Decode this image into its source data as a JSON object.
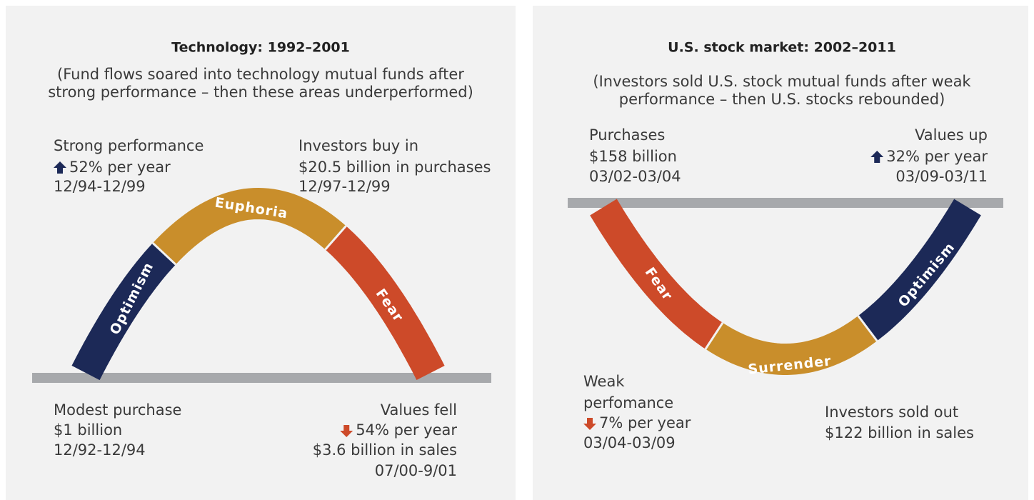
{
  "panels": [
    {
      "title": "Technology:  1992–2001",
      "subtitle": [
        "(Fund flows soared into technology mutual funds after",
        "strong performance – then these areas underperformed)"
      ],
      "segments": [
        "Optimism",
        "Euphoria",
        "Fear"
      ],
      "notes": [
        {
          "lines": [
            "Strong performance",
            "52% per year",
            "12/94-12/99"
          ]
        },
        {
          "lines": [
            "Investors buy in",
            "$20.5 billion in purchases",
            "12/97-12/99"
          ]
        },
        {
          "lines": [
            "Modest purchase",
            "$1 billion",
            "12/92-12/94"
          ]
        },
        {
          "lines": [
            "Values fell",
            "54% per year",
            "$3.6 billion in sales",
            "07/00-9/01"
          ]
        }
      ]
    },
    {
      "title": "U.S. stock market:  2002–2011",
      "subtitle": [
        "(Investors sold U.S. stock mutual funds after weak",
        "performance – then U.S. stocks rebounded)"
      ],
      "segments": [
        "Fear",
        "Surrender",
        "Optimism"
      ],
      "notes": [
        {
          "lines": [
            "Purchases",
            "$158 billion",
            "03/02-03/04"
          ]
        },
        {
          "lines": [
            "Values up",
            "32% per year",
            "03/09-03/11"
          ]
        },
        {
          "lines": [
            "Weak",
            "perfomance",
            "7% per year",
            "03/04-03/09"
          ]
        },
        {
          "lines": [
            "Investors sold out",
            "$122 billion in sales"
          ]
        }
      ]
    }
  ]
}
